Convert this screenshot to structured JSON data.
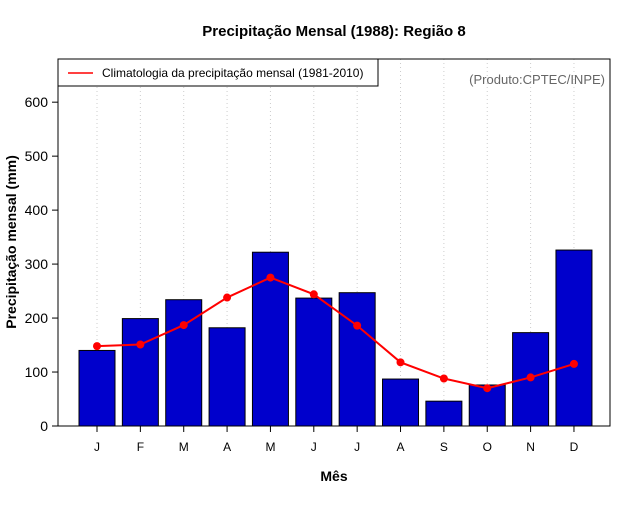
{
  "chart_data": {
    "type": "bar",
    "title": "Precipitação Mensal (1988): Região 8",
    "xlabel": "Mês",
    "ylabel": "Precipitação mensal (mm)",
    "ylim": [
      0,
      680
    ],
    "yticks": [
      0,
      100,
      200,
      300,
      400,
      500,
      600
    ],
    "categories": [
      "J",
      "F",
      "M",
      "A",
      "M",
      "J",
      "J",
      "A",
      "S",
      "O",
      "N",
      "D"
    ],
    "series": [
      {
        "name": "Precipitação mensal (1988)",
        "kind": "bar",
        "color": "#0000cc",
        "values": [
          140,
          199,
          234,
          182,
          322,
          237,
          247,
          87,
          46,
          76,
          173,
          326
        ]
      },
      {
        "name": "Climatologia da precipitação mensal (1981-2010)",
        "kind": "line",
        "color": "#ff0000",
        "values": [
          148,
          151,
          187,
          238,
          275,
          244,
          186,
          118,
          88,
          70,
          90,
          115
        ]
      }
    ],
    "legend": {
      "position": "top-left",
      "entries": [
        "Climatologia da precipitação mensal (1981-2010)"
      ]
    },
    "grid": "vertical-dotted",
    "annotation": "(Produto:CPTEC/INPE)"
  }
}
